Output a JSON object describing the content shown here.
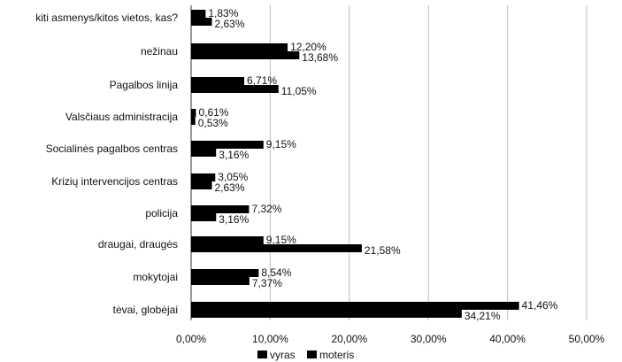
{
  "chart_data": {
    "type": "bar",
    "orientation": "horizontal",
    "categories": [
      "kiti asmenys/kitos vietos, kas?",
      "nežinau",
      "Pagalbos linija",
      "Valsčiaus administracija",
      "Socialinės pagalbos centras",
      "Krizių intervencijos centras",
      "policija",
      "draugai, draugės",
      "mokytojai",
      "tėvai, globėjai"
    ],
    "series": [
      {
        "name": "vyras",
        "values": [
          1.83,
          12.2,
          6.71,
          0.61,
          9.15,
          3.05,
          7.32,
          9.15,
          8.54,
          41.46
        ],
        "labels": [
          "1,83%",
          "12,20%",
          "6,71%",
          "0,61%",
          "9,15%",
          "3,05%",
          "7,32%",
          "9,15%",
          "8,54%",
          "41,46%"
        ],
        "color": "#000000"
      },
      {
        "name": "moteris",
        "values": [
          2.63,
          13.68,
          11.05,
          0.53,
          3.16,
          2.63,
          3.16,
          21.58,
          7.37,
          34.21
        ],
        "labels": [
          "2,63%",
          "13,68%",
          "11,05%",
          "0,53%",
          "3,16%",
          "2,63%",
          "3,16%",
          "21,58%",
          "7,37%",
          "34,21%"
        ],
        "color": "#000000"
      }
    ],
    "xlim": [
      0,
      50
    ],
    "xticks": [
      0,
      10,
      20,
      30,
      40,
      50
    ],
    "xtick_labels": [
      "0,00%",
      "10,00%",
      "20,00%",
      "30,00%",
      "40,00%",
      "50,00%"
    ],
    "grid": "vertical",
    "legend_position": "bottom",
    "title": "",
    "xlabel": "",
    "ylabel": ""
  }
}
